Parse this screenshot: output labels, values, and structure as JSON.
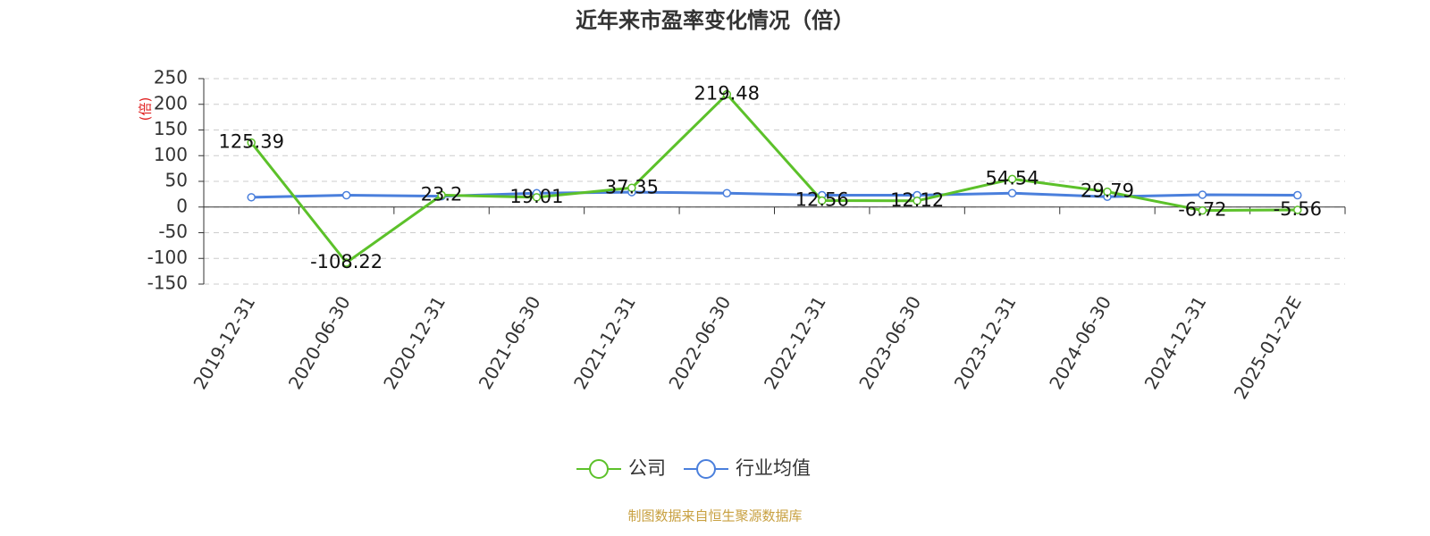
{
  "chart_data": {
    "type": "line",
    "title": "近年来市盈率变化情况（倍）",
    "y_label": "(倍)",
    "source": "制图数据来自恒生聚源数据库",
    "categories": [
      "2019-12-31",
      "2020-06-30",
      "2020-12-31",
      "2021-06-30",
      "2021-12-31",
      "2022-06-30",
      "2022-12-31",
      "2023-06-30",
      "2023-12-31",
      "2024-06-30",
      "2024-12-31",
      "2025-01-22E"
    ],
    "series": [
      {
        "name": "公司",
        "color": "#5cc12a",
        "values": [
          125.39,
          -108.22,
          23.2,
          19.01,
          37.35,
          219.48,
          12.56,
          12.12,
          54.54,
          29.79,
          -6.72,
          -5.56
        ],
        "data_labels": true
      },
      {
        "name": "行业均值",
        "color": "#4a7fdc",
        "values": [
          19,
          23,
          21,
          27,
          29,
          27,
          23,
          23,
          27,
          20,
          24,
          23
        ],
        "data_labels": false
      }
    ],
    "ylim": [
      -150,
      250
    ],
    "yticks": [
      -150,
      -100,
      -50,
      0,
      50,
      100,
      150,
      200,
      250
    ],
    "grid": true,
    "legend": "bottom"
  }
}
